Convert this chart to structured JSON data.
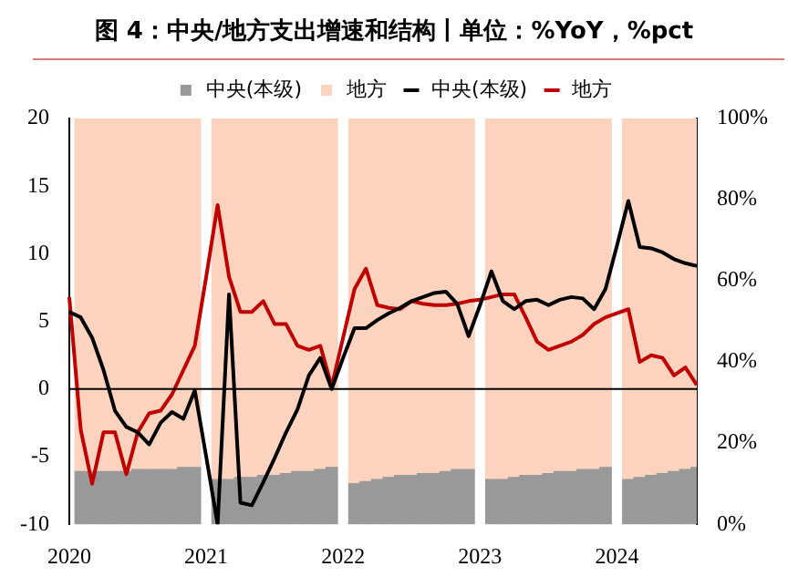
{
  "chart_data": {
    "type": "bar",
    "title": "图 4：中央/地方支出增速和结构丨单位：%YoY，%pct",
    "categories": [
      "2020",
      null,
      null,
      null,
      null,
      null,
      null,
      null,
      null,
      null,
      null,
      null,
      "2021",
      null,
      null,
      null,
      null,
      null,
      null,
      null,
      null,
      null,
      null,
      null,
      "2022",
      null,
      null,
      null,
      null,
      null,
      null,
      null,
      null,
      null,
      null,
      null,
      "2023",
      null,
      null,
      null,
      null,
      null,
      null,
      null,
      null,
      null,
      null,
      null,
      "2024",
      null,
      null,
      null,
      null,
      null,
      null,
      null
    ],
    "stacked": true,
    "series": [
      {
        "name": "中央(本级)",
        "axis": "y2",
        "color": "#999999",
        "values": [
          null,
          13,
          13,
          13,
          13,
          13,
          13.5,
          13.5,
          13.5,
          13.5,
          14,
          14,
          null,
          11,
          11,
          11.5,
          11.5,
          12,
          12,
          12.5,
          13,
          13,
          13.5,
          14,
          null,
          10,
          10.5,
          11,
          11.5,
          12,
          12,
          12.5,
          12.5,
          13,
          13.5,
          13.5,
          null,
          11,
          11,
          11.5,
          12,
          12,
          12.5,
          13,
          13,
          13.5,
          13.5,
          14,
          null,
          11,
          11.5,
          12,
          12.5,
          13,
          13.5,
          14
        ]
      },
      {
        "name": "地方",
        "axis": "y2",
        "color": "#fbd3bf",
        "values": [
          null,
          87,
          87,
          87,
          87,
          87,
          86.5,
          86.5,
          86.5,
          86.5,
          86,
          86,
          null,
          89,
          89,
          88.5,
          88.5,
          88,
          88,
          87.5,
          87,
          87,
          86.5,
          86,
          null,
          90,
          89.5,
          89,
          88.5,
          88,
          88,
          87.5,
          87.5,
          87,
          86.5,
          86.5,
          null,
          89,
          89,
          88.5,
          88,
          88,
          87.5,
          87,
          87,
          86.5,
          86.5,
          86,
          null,
          89,
          88.5,
          88,
          87.5,
          87,
          86.5,
          86
        ]
      },
      {
        "name": "中央(本级)",
        "type": "line",
        "color": "#000000",
        "values": [
          5.7,
          5.3,
          3.8,
          1.4,
          -1.6,
          -2.8,
          -3.2,
          -4.1,
          -2.5,
          -1.7,
          -2.2,
          -0.1,
          -5,
          -10,
          7,
          -8.4,
          -8.6,
          -6.9,
          -5.1,
          -3.2,
          -1.5,
          1,
          2.3,
          0,
          2.3,
          4.5,
          4.5,
          5.1,
          5.6,
          6,
          6.5,
          6.8,
          7.1,
          7.2,
          6.3,
          3.9,
          6.2,
          8.7,
          6.5,
          5.9,
          6.5,
          6.6,
          6.2,
          6.6,
          6.8,
          6.7,
          5.9,
          7.4,
          10.6,
          13.9,
          10.5,
          10.4,
          10.1,
          9.6,
          9.3,
          9.1
        ]
      },
      {
        "name": "地方",
        "type": "line",
        "color": "#c00000",
        "values": [
          6.8,
          -3,
          -7,
          -3.2,
          -3.2,
          -6.3,
          -3.2,
          -1.8,
          -1.6,
          -0.4,
          1.4,
          3.2,
          8.3,
          13.6,
          8.3,
          5.7,
          5.7,
          6.5,
          4.8,
          4.8,
          3.2,
          2.9,
          3.2,
          0.2,
          3.8,
          7.4,
          8.9,
          6.2,
          6,
          5.9,
          6.5,
          6.3,
          6.2,
          6.2,
          6.3,
          6.5,
          6.6,
          6.8,
          7,
          7,
          5.3,
          3.5,
          2.9,
          3.2,
          3.5,
          4,
          4.8,
          5.3,
          5.6,
          5.9,
          2,
          2.5,
          2.3,
          1,
          1.6,
          0.3
        ]
      }
    ],
    "ylim": [
      -10,
      20
    ],
    "yticks": [
      -10,
      -5,
      0,
      5,
      10,
      15,
      20
    ],
    "y2lim": [
      0,
      100
    ],
    "y2ticks": [
      {
        "value": 0,
        "label": "0%"
      },
      {
        "value": 20,
        "label": "20%"
      },
      {
        "value": 40,
        "label": "40%"
      },
      {
        "value": 60,
        "label": "60%"
      },
      {
        "value": 80,
        "label": "80%"
      },
      {
        "value": 100,
        "label": "100%"
      }
    ],
    "ref_lines": [
      {
        "axis": "y",
        "value": 0,
        "color": "#000000"
      }
    ],
    "grid": false,
    "legend": "top",
    "marker": "none",
    "line_style": "solid"
  }
}
